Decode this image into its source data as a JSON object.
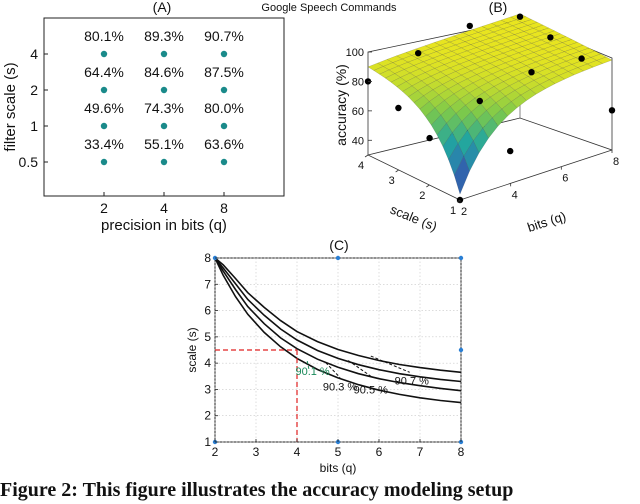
{
  "figure": {
    "title": "Google Speech Commands",
    "caption": "Figure 2: This figure illustrates the accuracy modeling setup"
  },
  "chart_data": [
    {
      "panel": "(A)",
      "type": "table",
      "xlabel": "precision in bits (q)",
      "ylabel": "filter scale (s)",
      "x_ticks": [
        "2",
        "4",
        "8"
      ],
      "y_ticks": [
        "0.5",
        "1",
        "2",
        "4"
      ],
      "rows": [
        {
          "scale": "4",
          "values": [
            "80.1%",
            "89.3%",
            "90.7%"
          ]
        },
        {
          "scale": "2",
          "values": [
            "64.4%",
            "84.6%",
            "87.5%"
          ]
        },
        {
          "scale": "1",
          "values": [
            "49.6%",
            "74.3%",
            "80.0%"
          ]
        },
        {
          "scale": "0.5",
          "values": [
            "33.4%",
            "55.1%",
            "63.6%"
          ]
        }
      ],
      "dot_color": "#1a8a8a"
    },
    {
      "panel": "(B)",
      "type": "surface",
      "xlabel": "bits (q)",
      "ylabel": "scale (s)",
      "zlabel": "accuracy (%)",
      "x_ticks": [
        "2",
        "4",
        "6",
        "8"
      ],
      "y_ticks": [
        "1",
        "2",
        "3",
        "4"
      ],
      "z_ticks": [
        "40",
        "60",
        "80",
        "100"
      ],
      "zlim": [
        30,
        100
      ],
      "colormap": [
        "#3b2f8f",
        "#2f6fb3",
        "#21a5a0",
        "#7cc94b",
        "#e9e51f"
      ]
    },
    {
      "panel": "(C)",
      "type": "line",
      "xlabel": "bits (q)",
      "ylabel": "scale (s)",
      "xlim": [
        2,
        8
      ],
      "ylim": [
        1,
        8
      ],
      "x_ticks": [
        "2",
        "3",
        "4",
        "5",
        "6",
        "7",
        "8"
      ],
      "y_ticks": [
        "1",
        "2",
        "3",
        "4",
        "5",
        "6",
        "7",
        "8"
      ],
      "series": [
        {
          "name": "90.1 %",
          "x": [
            2.0,
            2.2,
            2.5,
            2.8,
            3.2,
            3.6,
            4.0,
            4.5,
            5.0,
            5.5,
            6.0,
            6.5,
            7.0,
            7.5,
            8.0
          ],
          "y": [
            8.0,
            7.34,
            6.53,
            5.86,
            5.17,
            4.62,
            4.18,
            3.76,
            3.44,
            3.18,
            2.97,
            2.81,
            2.68,
            2.58,
            2.5
          ]
        },
        {
          "name": "90.3 %",
          "x": [
            2.0,
            2.2,
            2.5,
            2.8,
            3.2,
            3.6,
            4.0,
            4.5,
            5.0,
            5.5,
            6.0,
            6.5,
            7.0,
            7.5,
            8.0
          ],
          "y": [
            8.0,
            7.5,
            6.8,
            6.15,
            5.5,
            4.96,
            4.55,
            4.15,
            3.84,
            3.6,
            3.41,
            3.26,
            3.14,
            3.04,
            2.95
          ]
        },
        {
          "name": "90.5 %",
          "x": [
            2.0,
            2.2,
            2.5,
            2.8,
            3.2,
            3.6,
            4.0,
            4.5,
            5.0,
            5.5,
            6.0,
            6.5,
            7.0,
            7.5,
            8.0
          ],
          "y": [
            8.0,
            7.62,
            7.02,
            6.42,
            5.82,
            5.3,
            4.88,
            4.48,
            4.18,
            3.94,
            3.75,
            3.6,
            3.48,
            3.38,
            3.3
          ]
        },
        {
          "name": "90.7 %",
          "x": [
            2.0,
            2.2,
            2.5,
            2.8,
            3.2,
            3.6,
            4.0,
            4.5,
            5.0,
            5.5,
            6.0,
            6.5,
            7.0,
            7.5,
            8.0
          ],
          "y": [
            8.0,
            7.74,
            7.22,
            6.68,
            6.12,
            5.62,
            5.2,
            4.82,
            4.52,
            4.29,
            4.1,
            3.95,
            3.83,
            3.73,
            3.65
          ]
        }
      ],
      "highlight": {
        "x": 4,
        "y": 4.5,
        "color": "#e02020",
        "label_color": "#1a8a5a"
      },
      "line_color": "#111111",
      "marker_color": "#2a7fd4"
    }
  ]
}
